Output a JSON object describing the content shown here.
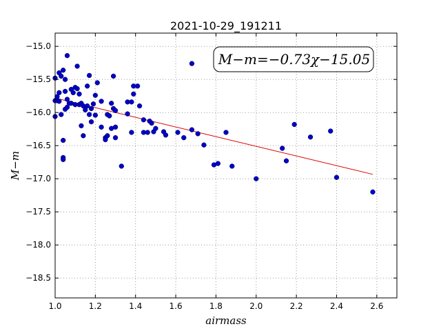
{
  "chart_data": {
    "type": "scatter",
    "title": "2021-10-29_191211",
    "xlabel": "airmass",
    "ylabel": "M−m",
    "xlim": [
      1.0,
      2.7
    ],
    "ylim": [
      -18.8,
      -14.8
    ],
    "y_inverted": false,
    "grid": true,
    "x_ticks": [
      1.0,
      1.2,
      1.4,
      1.6,
      1.8,
      2.0,
      2.2,
      2.4,
      2.6
    ],
    "x_tick_labels": [
      "1.0",
      "1.2",
      "1.4",
      "1.6",
      "1.8",
      "2.0",
      "2.2",
      "2.4",
      "2.6"
    ],
    "y_ticks": [
      -15.0,
      -15.5,
      -16.0,
      -16.5,
      -17.0,
      -17.5,
      -18.0,
      -18.5
    ],
    "y_tick_labels": [
      "−15.0",
      "−15.5",
      "−16.0",
      "−16.5",
      "−17.0",
      "−17.5",
      "−18.0",
      "−18.5"
    ],
    "annotation": "M−m=−0.73χ−15.05",
    "colors": {
      "points": "#0000cc",
      "fit": "#dd0000",
      "grid": "#9a9a9a"
    },
    "fit_line": {
      "slope": -0.73,
      "intercept": -15.05,
      "x_range": [
        1.0,
        2.58
      ]
    },
    "points": [
      [
        1.0,
        -15.48
      ],
      [
        1.0,
        -15.82
      ],
      [
        1.0,
        -16.06
      ],
      [
        1.01,
        -15.76
      ],
      [
        1.01,
        -15.82
      ],
      [
        1.02,
        -15.4
      ],
      [
        1.02,
        -15.7
      ],
      [
        1.02,
        -15.83
      ],
      [
        1.03,
        -15.45
      ],
      [
        1.03,
        -16.03
      ],
      [
        1.04,
        -15.36
      ],
      [
        1.04,
        -16.42
      ],
      [
        1.04,
        -16.68
      ],
      [
        1.04,
        -16.71
      ],
      [
        1.05,
        -15.5
      ],
      [
        1.05,
        -15.95
      ],
      [
        1.05,
        -15.68
      ],
      [
        1.06,
        -15.14
      ],
      [
        1.06,
        -15.92
      ],
      [
        1.06,
        -15.8
      ],
      [
        1.07,
        -15.86
      ],
      [
        1.08,
        -15.65
      ],
      [
        1.08,
        -15.86
      ],
      [
        1.09,
        -15.7
      ],
      [
        1.1,
        -15.62
      ],
      [
        1.1,
        -15.88
      ],
      [
        1.11,
        -15.3
      ],
      [
        1.11,
        -15.64
      ],
      [
        1.12,
        -15.72
      ],
      [
        1.12,
        -15.88
      ],
      [
        1.13,
        -16.2
      ],
      [
        1.13,
        -15.86
      ],
      [
        1.14,
        -16.35
      ],
      [
        1.14,
        -15.9
      ],
      [
        1.15,
        -15.96
      ],
      [
        1.16,
        -15.6
      ],
      [
        1.16,
        -15.9
      ],
      [
        1.17,
        -15.44
      ],
      [
        1.17,
        -16.03
      ],
      [
        1.18,
        -15.94
      ],
      [
        1.18,
        -16.14
      ],
      [
        1.19,
        -15.87
      ],
      [
        1.2,
        -15.74
      ],
      [
        1.2,
        -16.04
      ],
      [
        1.21,
        -15.55
      ],
      [
        1.23,
        -15.83
      ],
      [
        1.23,
        -16.22
      ],
      [
        1.25,
        -16.38
      ],
      [
        1.25,
        -16.41
      ],
      [
        1.26,
        -16.03
      ],
      [
        1.26,
        -16.35
      ],
      [
        1.27,
        -16.05
      ],
      [
        1.28,
        -16.24
      ],
      [
        1.28,
        -15.86
      ],
      [
        1.29,
        -15.45
      ],
      [
        1.29,
        -15.94
      ],
      [
        1.3,
        -15.97
      ],
      [
        1.3,
        -16.22
      ],
      [
        1.3,
        -16.38
      ],
      [
        1.33,
        -16.81
      ],
      [
        1.36,
        -15.84
      ],
      [
        1.36,
        -16.02
      ],
      [
        1.38,
        -16.3
      ],
      [
        1.38,
        -15.84
      ],
      [
        1.39,
        -15.6
      ],
      [
        1.39,
        -15.72
      ],
      [
        1.41,
        -15.6
      ],
      [
        1.42,
        -15.9
      ],
      [
        1.44,
        -16.11
      ],
      [
        1.44,
        -16.3
      ],
      [
        1.46,
        -16.3
      ],
      [
        1.47,
        -16.13
      ],
      [
        1.48,
        -16.16
      ],
      [
        1.49,
        -16.29
      ],
      [
        1.5,
        -16.24
      ],
      [
        1.54,
        -16.29
      ],
      [
        1.55,
        -16.34
      ],
      [
        1.61,
        -16.3
      ],
      [
        1.64,
        -16.38
      ],
      [
        1.68,
        -15.26
      ],
      [
        1.68,
        -16.26
      ],
      [
        1.71,
        -16.32
      ],
      [
        1.74,
        -16.49
      ],
      [
        1.79,
        -16.79
      ],
      [
        1.81,
        -16.77
      ],
      [
        1.85,
        -16.3
      ],
      [
        1.88,
        -16.81
      ],
      [
        2.0,
        -17.0
      ],
      [
        2.13,
        -16.54
      ],
      [
        2.15,
        -16.73
      ],
      [
        2.19,
        -16.18
      ],
      [
        2.27,
        -16.37
      ],
      [
        2.37,
        -16.28
      ],
      [
        2.4,
        -16.98
      ],
      [
        2.58,
        -17.2
      ]
    ]
  }
}
